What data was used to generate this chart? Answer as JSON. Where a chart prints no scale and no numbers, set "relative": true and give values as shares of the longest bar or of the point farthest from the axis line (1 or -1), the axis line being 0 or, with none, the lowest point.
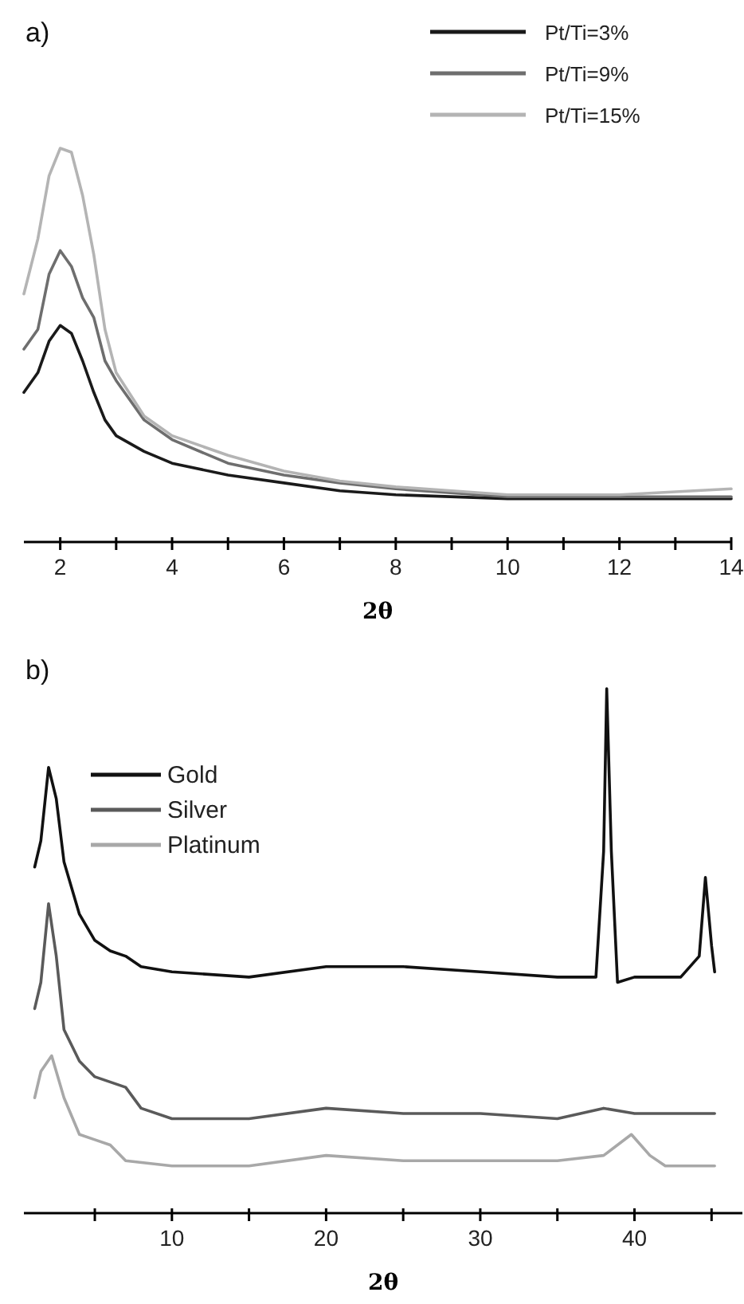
{
  "chart_data": [
    {
      "type": "line",
      "title": "a)",
      "xlabel": "2θ",
      "relative": true,
      "legend": "top right",
      "line_style": "solid",
      "xlim": [
        1.35,
        14
      ],
      "xticks": [
        2,
        {
          "value": 3,
          "label": null
        },
        4,
        {
          "value": 5,
          "label": null
        },
        6,
        {
          "value": 7,
          "label": null
        },
        8,
        {
          "value": 9,
          "label": null
        },
        10,
        {
          "value": 11,
          "label": null
        },
        12,
        {
          "value": 13,
          "label": null
        },
        14
      ],
      "x": [
        1.35,
        1.6,
        1.8,
        2.0,
        2.2,
        2.4,
        2.6,
        2.8,
        3.0,
        3.5,
        4,
        5,
        6,
        7,
        8,
        10,
        12,
        14
      ],
      "series": [
        {
          "name": "Pt/Ti=3%",
          "color": "#1a1a1a",
          "values": [
            0.38,
            0.43,
            0.51,
            0.55,
            0.53,
            0.46,
            0.38,
            0.31,
            0.27,
            0.23,
            0.2,
            0.17,
            0.15,
            0.13,
            0.12,
            0.11,
            0.11,
            0.11
          ]
        },
        {
          "name": "Pt/Ti=9%",
          "color": "#6e6e6e",
          "values": [
            0.49,
            0.54,
            0.68,
            0.74,
            0.7,
            0.62,
            0.57,
            0.46,
            0.41,
            0.31,
            0.26,
            0.2,
            0.17,
            0.15,
            0.135,
            0.115,
            0.115,
            0.115
          ]
        },
        {
          "name": "Pt/Ti=15%",
          "color": "#b4b4b4",
          "values": [
            0.63,
            0.77,
            0.93,
            1.0,
            0.99,
            0.88,
            0.73,
            0.54,
            0.43,
            0.32,
            0.27,
            0.22,
            0.18,
            0.155,
            0.14,
            0.12,
            0.12,
            0.135
          ]
        }
      ]
    },
    {
      "type": "line",
      "title": "b)",
      "xlabel": "2θ",
      "relative": true,
      "legend": "top left",
      "line_style": "solid",
      "xlim": [
        0.4,
        47
      ],
      "xticks": [
        {
          "value": 5,
          "label": null
        },
        10,
        {
          "value": 15,
          "label": null
        },
        20,
        {
          "value": 25,
          "label": null
        },
        30,
        {
          "value": 35,
          "label": null
        },
        40,
        {
          "value": 45,
          "label": null
        }
      ],
      "series": [
        {
          "name": "Gold",
          "color": "#111111",
          "x": [
            1.1,
            1.5,
            2.0,
            2.5,
            3,
            4,
            5,
            6,
            7,
            8,
            10,
            15,
            20,
            25,
            30,
            35,
            37.5,
            38,
            38.2,
            38.5,
            38.9,
            40,
            43,
            44.2,
            44.6,
            45,
            45.2
          ],
          "values": [
            0.66,
            0.71,
            0.85,
            0.79,
            0.67,
            0.57,
            0.52,
            0.5,
            0.49,
            0.47,
            0.46,
            0.45,
            0.47,
            0.47,
            0.46,
            0.45,
            0.45,
            0.69,
            1.0,
            0.69,
            0.44,
            0.45,
            0.45,
            0.49,
            0.64,
            0.51,
            0.46
          ]
        },
        {
          "name": "Silver",
          "color": "#5a5a5a",
          "x": [
            1.1,
            1.5,
            2,
            2.5,
            3,
            4,
            5,
            7,
            8,
            10,
            15,
            20,
            25,
            30,
            35,
            38,
            40,
            45.2
          ],
          "values": [
            0.39,
            0.44,
            0.59,
            0.49,
            0.35,
            0.29,
            0.26,
            0.24,
            0.2,
            0.18,
            0.18,
            0.2,
            0.19,
            0.19,
            0.18,
            0.2,
            0.19,
            0.19
          ]
        },
        {
          "name": "Platinum",
          "color": "#a8a8a8",
          "x": [
            1.1,
            1.5,
            2.2,
            3,
            4,
            5,
            6,
            7,
            10,
            15,
            20,
            25,
            30,
            35,
            38,
            39.8,
            41,
            42,
            45.2
          ],
          "values": [
            0.22,
            0.27,
            0.3,
            0.22,
            0.15,
            0.14,
            0.13,
            0.1,
            0.09,
            0.09,
            0.11,
            0.1,
            0.1,
            0.1,
            0.11,
            0.15,
            0.11,
            0.09,
            0.09
          ]
        }
      ]
    }
  ]
}
